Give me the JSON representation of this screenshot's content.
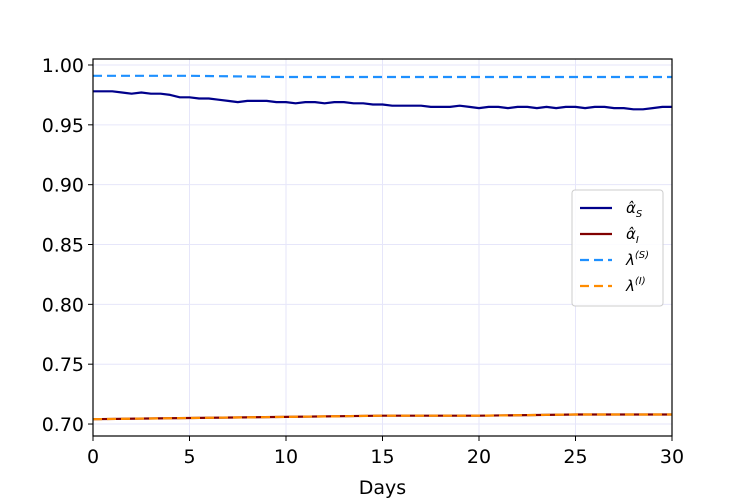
{
  "chart_data": {
    "type": "line",
    "title": "",
    "xlabel": "Days",
    "ylabel": "",
    "xlim": [
      0,
      30
    ],
    "ylim": [
      0.69,
      1.005
    ],
    "xticks": [
      "0",
      "5",
      "10",
      "15",
      "20",
      "25",
      "30"
    ],
    "yticks": [
      "0.70",
      "0.75",
      "0.80",
      "0.85",
      "0.90",
      "0.95",
      "1.00"
    ],
    "grid": true,
    "legend_position": "center-right",
    "legend": [
      {
        "base": "α̂",
        "sub": "S",
        "sup": ""
      },
      {
        "base": "α̂",
        "sub": "I",
        "sup": ""
      },
      {
        "base": "λ",
        "sub": "",
        "sup": "(S)"
      },
      {
        "base": "λ",
        "sub": "",
        "sup": "(I)"
      }
    ],
    "series": [
      {
        "key": "alpha_S",
        "color": "#00008b",
        "dash": false,
        "x": [
          0,
          0.5,
          1,
          1.5,
          2,
          2.5,
          3,
          3.5,
          4,
          4.5,
          5,
          5.5,
          6,
          6.5,
          7,
          7.5,
          8,
          8.5,
          9,
          9.5,
          10,
          10.5,
          11,
          11.5,
          12,
          12.5,
          13,
          13.5,
          14,
          14.5,
          15,
          15.5,
          16,
          16.5,
          17,
          17.5,
          18,
          18.5,
          19,
          19.5,
          20,
          20.5,
          21,
          21.5,
          22,
          22.5,
          23,
          23.5,
          24,
          24.5,
          25,
          25.5,
          26,
          26.5,
          27,
          27.5,
          28,
          28.5,
          29,
          29.5,
          30
        ],
        "y": [
          0.978,
          0.978,
          0.978,
          0.977,
          0.976,
          0.977,
          0.976,
          0.976,
          0.975,
          0.973,
          0.973,
          0.972,
          0.972,
          0.971,
          0.97,
          0.969,
          0.97,
          0.97,
          0.97,
          0.969,
          0.969,
          0.968,
          0.969,
          0.969,
          0.968,
          0.969,
          0.969,
          0.968,
          0.968,
          0.967,
          0.967,
          0.966,
          0.966,
          0.966,
          0.966,
          0.965,
          0.965,
          0.965,
          0.966,
          0.965,
          0.964,
          0.965,
          0.965,
          0.964,
          0.965,
          0.965,
          0.964,
          0.965,
          0.964,
          0.965,
          0.965,
          0.964,
          0.965,
          0.965,
          0.964,
          0.964,
          0.963,
          0.963,
          0.964,
          0.965,
          0.965
        ]
      },
      {
        "key": "alpha_I",
        "color": "#800000",
        "dash": false,
        "x": [
          0,
          5,
          10,
          15,
          20,
          25,
          30
        ],
        "y": [
          0.704,
          0.705,
          0.706,
          0.707,
          0.707,
          0.708,
          0.708
        ]
      },
      {
        "key": "lambda_S",
        "color": "#1e90ff",
        "dash": true,
        "x": [
          0,
          5,
          10,
          15,
          20,
          25,
          30
        ],
        "y": [
          0.991,
          0.991,
          0.99,
          0.99,
          0.99,
          0.99,
          0.99
        ]
      },
      {
        "key": "lambda_I",
        "color": "#ff8c00",
        "dash": true,
        "x": [
          0,
          5,
          10,
          15,
          20,
          25,
          30
        ],
        "y": [
          0.704,
          0.705,
          0.706,
          0.707,
          0.707,
          0.708,
          0.708
        ]
      }
    ]
  }
}
